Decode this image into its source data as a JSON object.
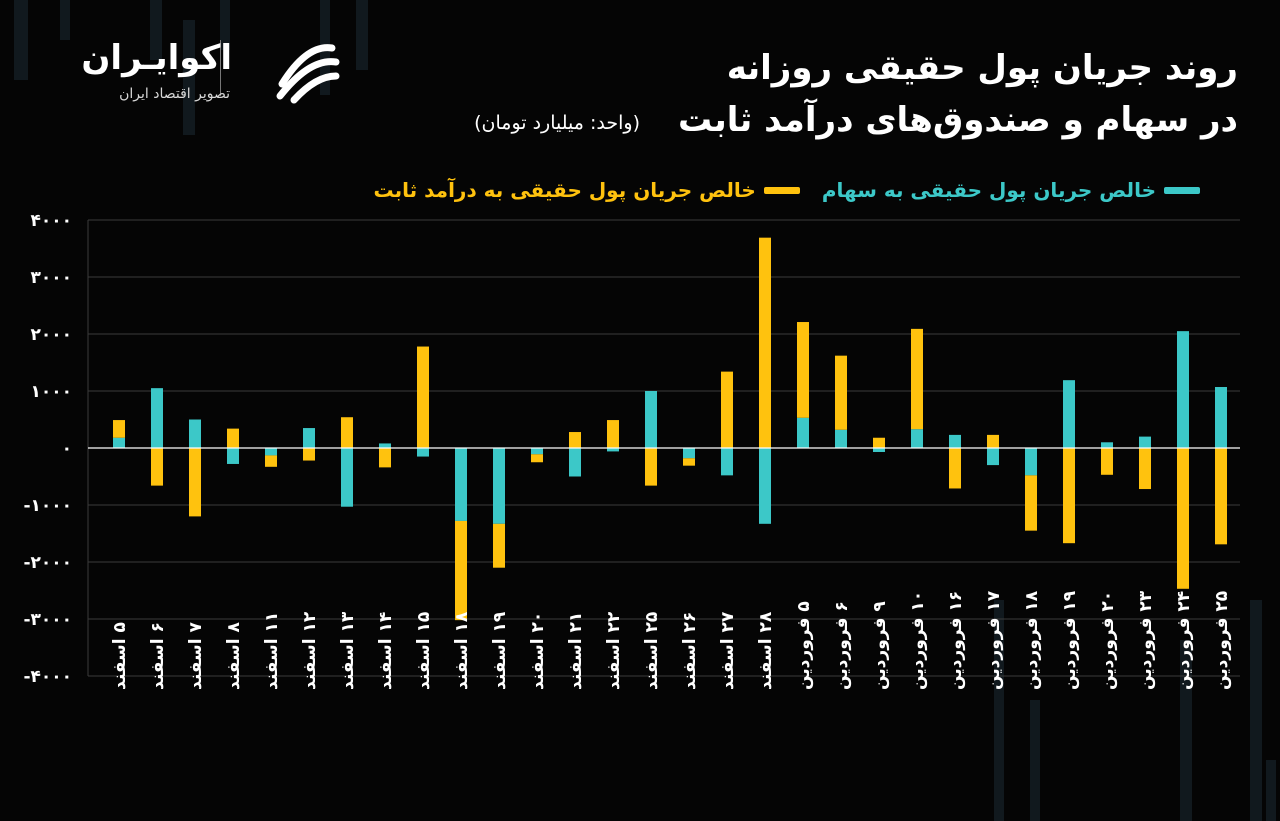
{
  "brand": {
    "name": "اکوایـران",
    "tagline": "تصویر اقتصاد ایران"
  },
  "header": {
    "title_line1": "روند جریان پول حقیقی روزانه",
    "title_line2": "در سهام و صندوق‌های درآمد ثابت",
    "unit": "(واحد: میلیارد تومان)"
  },
  "colors": {
    "background": "#050505",
    "stocks": "#3cc8c8",
    "fixed_income": "#ffc20e",
    "axis": "#ffffff",
    "grid": "#3a3a3a"
  },
  "chart_data": {
    "type": "bar",
    "stacked": true,
    "title": "روند جریان پول حقیقی روزانه در سهام و صندوق‌های درآمد ثابت",
    "ylabel": "",
    "xlabel": "",
    "ylim": [
      -4000,
      4000
    ],
    "yticks": [
      4000,
      3000,
      2000,
      1000,
      0,
      -1000,
      -2000,
      -3000,
      -4000
    ],
    "ytick_labels": [
      "۴۰۰۰",
      "۳۰۰۰",
      "۲۰۰۰",
      "۱۰۰۰",
      "۰",
      "-۱۰۰۰",
      "-۲۰۰۰",
      "-۳۰۰۰",
      "-۴۰۰۰"
    ],
    "grid": true,
    "legend_position": "top-right",
    "categories": [
      "۵ اسفند",
      "۶ اسفند",
      "۷ اسفند",
      "۸ اسفند",
      "۱۱ اسفند",
      "۱۲ اسفند",
      "۱۳ اسفند",
      "۱۴ اسفند",
      "۱۵ اسفند",
      "۱۸ اسفند",
      "۱۹ اسفند",
      "۲۰ اسفند",
      "۲۱ اسفند",
      "۲۲ اسفند",
      "۲۵ اسفند",
      "۲۶ اسفند",
      "۲۷ اسفند",
      "۲۸ اسفند",
      "۵ فروردین",
      "۶ فروردین",
      "۹ فروردین",
      "۱۰ فروردین",
      "۱۶ فروردین",
      "۱۷ فروردین",
      "۱۸ فروردین",
      "۱۹ فروردین",
      "۲۰ فروردین",
      "۲۳ فروردین",
      "۲۴ فروردین",
      "۲۵ فروردین"
    ],
    "series": [
      {
        "name": "خالص جریان پول حقیقی به سهام",
        "color": "#3cc8c8",
        "values": [
          180,
          1050,
          500,
          -280,
          -130,
          350,
          -1030,
          80,
          -150,
          -1280,
          -1330,
          -110,
          -500,
          -60,
          1000,
          -180,
          -480,
          -1330,
          530,
          320,
          -70,
          330,
          230,
          -300,
          -480,
          1190,
          100,
          200,
          2050,
          1070
        ]
      },
      {
        "name": "خالص جریان پول حقیقی به درآمد ثابت",
        "color": "#ffc20e",
        "values": [
          310,
          -660,
          -1200,
          340,
          -200,
          -220,
          540,
          -340,
          1780,
          -1740,
          -770,
          -140,
          280,
          490,
          -660,
          -130,
          1340,
          3690,
          1680,
          1300,
          180,
          1760,
          -710,
          230,
          -970,
          -1670,
          -470,
          -720,
          -2470,
          -1690
        ]
      }
    ]
  }
}
